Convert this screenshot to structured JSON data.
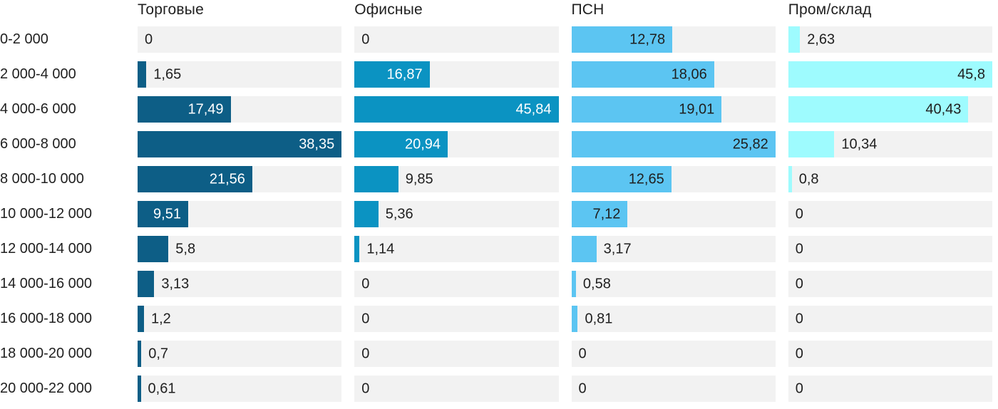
{
  "colors": {
    "background": "#ffffff",
    "track": "#f2f2f2",
    "text_dark": "#1f1f1f",
    "label_inside_light": "#ffffff"
  },
  "chart_data": {
    "type": "bar",
    "orientation": "horizontal",
    "title": "",
    "xlabel": "",
    "ylabel": "",
    "grid": false,
    "legend_position": "column-headers",
    "track_color": "#f2f2f2",
    "categories": [
      "0-2 000",
      "2 000-4 000",
      "4 000-6 000",
      "6 000-8 000",
      "8 000-10 000",
      "10 000-12 000",
      "12 000-14 000",
      "14 000-16 000",
      "16 000-18 000",
      "18 000-20 000",
      "20 000-22 000"
    ],
    "series": [
      {
        "name": "Торговые",
        "color": "#0d5e86",
        "inside_label_color": "#ffffff",
        "axis_max": 38.35,
        "values": [
          0,
          1.65,
          17.49,
          38.35,
          21.56,
          9.51,
          5.8,
          3.13,
          1.2,
          0.7,
          0.61
        ],
        "labels": [
          "0",
          "1,65",
          "17,49",
          "38,35",
          "21,56",
          "9,51",
          "5,8",
          "3,13",
          "1,2",
          "0,7",
          "0,61"
        ]
      },
      {
        "name": "Офисные",
        "color": "#0b93c2",
        "inside_label_color": "#ffffff",
        "axis_max": 45.84,
        "values": [
          0,
          16.87,
          45.84,
          20.94,
          9.85,
          5.36,
          1.14,
          0,
          0,
          0,
          0
        ],
        "labels": [
          "0",
          "16,87",
          "45,84",
          "20,94",
          "9,85",
          "5,36",
          "1,14",
          "0",
          "0",
          "0",
          "0"
        ]
      },
      {
        "name": "ПСН",
        "color": "#5cc5f2",
        "inside_label_color": "#1f1f1f",
        "axis_max": 25.82,
        "values": [
          12.78,
          18.06,
          19.01,
          25.82,
          12.65,
          7.12,
          3.17,
          0.58,
          0.81,
          0,
          0
        ],
        "labels": [
          "12,78",
          "18,06",
          "19,01",
          "25,82",
          "12,65",
          "7,12",
          "3,17",
          "0,58",
          "0,81",
          "0",
          "0"
        ]
      },
      {
        "name": "Пром/склад",
        "color": "#9efbfe",
        "inside_label_color": "#1f1f1f",
        "axis_max": 45.8,
        "values": [
          2.63,
          45.8,
          40.43,
          10.34,
          0.8,
          0,
          0,
          0,
          0,
          0,
          0
        ],
        "labels": [
          "2,63",
          "45,8",
          "40,43",
          "10,34",
          "0,8",
          "0",
          "0",
          "0",
          "0",
          "0",
          "0"
        ]
      }
    ]
  }
}
